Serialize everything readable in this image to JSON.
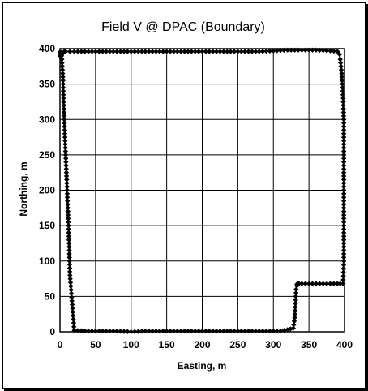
{
  "chart_data": {
    "type": "scatter",
    "title": "Field V @ DPAC (Boundary)",
    "xlabel": "Easting, m",
    "ylabel": "Northing, m",
    "xlim": [
      0,
      400
    ],
    "ylim": [
      0,
      400
    ],
    "xticks": [
      0,
      50,
      100,
      150,
      200,
      250,
      300,
      350,
      400
    ],
    "yticks": [
      0,
      50,
      100,
      150,
      200,
      250,
      300,
      350,
      400
    ],
    "grid": true,
    "series": [
      {
        "marker": "diamond",
        "connected": true,
        "color": "#000000",
        "x": [
          2,
          4,
          6,
          8,
          10,
          12,
          14,
          20,
          40,
          60,
          80,
          100,
          120,
          140,
          160,
          180,
          200,
          220,
          240,
          260,
          280,
          300,
          310,
          320,
          328,
          330,
          331,
          332,
          333,
          333,
          334,
          336,
          340,
          350,
          360,
          370,
          380,
          390,
          398,
          399,
          399,
          399,
          399,
          399,
          398,
          397,
          396,
          395,
          394,
          393,
          390,
          380,
          360,
          340,
          320,
          300,
          280,
          260,
          240,
          220,
          200,
          180,
          160,
          140,
          120,
          100,
          80,
          60,
          40,
          20,
          8,
          6,
          5,
          4,
          3,
          2,
          2,
          1,
          0,
          0
        ],
        "y": [
          395,
          360,
          300,
          250,
          200,
          150,
          80,
          2,
          1,
          1,
          1,
          0,
          1,
          1,
          1,
          1,
          1,
          1,
          1,
          1,
          1,
          1,
          1,
          3,
          5,
          20,
          40,
          60,
          65,
          67,
          68,
          68,
          68,
          68,
          68,
          68,
          68,
          68,
          68,
          100,
          150,
          200,
          250,
          300,
          330,
          350,
          365,
          375,
          385,
          392,
          396,
          397,
          398,
          398,
          398,
          397,
          396,
          396,
          396,
          396,
          396,
          396,
          396,
          396,
          396,
          396,
          396,
          396,
          396,
          396,
          396,
          396,
          395,
          394,
          393,
          392,
          391,
          390,
          390,
          395
        ]
      }
    ]
  }
}
